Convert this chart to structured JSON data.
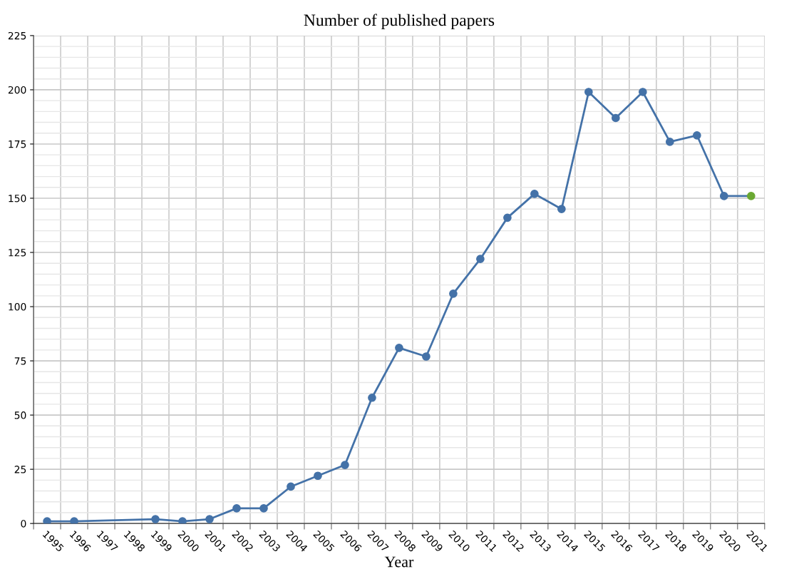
{
  "chart_data": {
    "type": "line",
    "title": "Number of published papers",
    "xlabel": "Year",
    "categories": [
      "1995",
      "1996",
      "1997",
      "1998",
      "1999",
      "2000",
      "2001",
      "2002",
      "2003",
      "2004",
      "2005",
      "2006",
      "2007",
      "2008",
      "2009",
      "2010",
      "2011",
      "2012",
      "2013",
      "2014",
      "2015",
      "2016",
      "2017",
      "2018",
      "2019",
      "2020",
      "2021"
    ],
    "series": [
      {
        "color": "#4472a8",
        "values": [
          1,
          1,
          null,
          null,
          2,
          1,
          2,
          7,
          7,
          17,
          22,
          27,
          58,
          81,
          77,
          106,
          122,
          141,
          152,
          145,
          199,
          187,
          199,
          176,
          179,
          151,
          151
        ],
        "colors": [
          "#4472a8",
          "#4472a8",
          "#4472a8",
          "#4472a8",
          "#4472a8",
          "#4472a8",
          "#4472a8",
          "#4472a8",
          "#4472a8",
          "#4472a8",
          "#4472a8",
          "#4472a8",
          "#4472a8",
          "#4472a8",
          "#4472a8",
          "#4472a8",
          "#4472a8",
          "#4472a8",
          "#4472a8",
          "#4472a8",
          "#4472a8",
          "#4472a8",
          "#4472a8",
          "#4472a8",
          "#4472a8",
          "#4472a8",
          "#6aa832"
        ]
      }
    ],
    "ylim": [
      0,
      225
    ],
    "yticks": [
      0,
      25,
      50,
      75,
      100,
      125,
      150,
      175,
      200,
      225
    ],
    "grid": true,
    "marker": "circle",
    "line_style": "solid",
    "legend": false
  }
}
